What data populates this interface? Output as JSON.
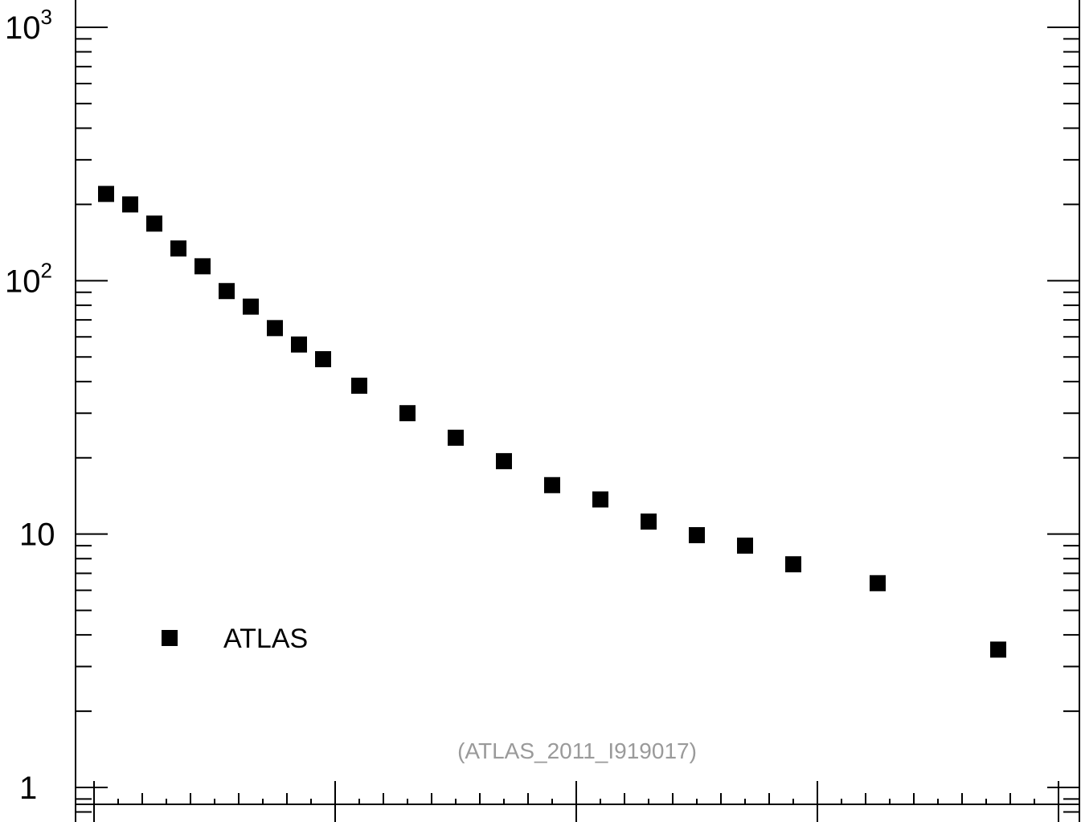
{
  "chart_data": {
    "type": "scatter",
    "yscale": "log",
    "ylim": [
      1,
      1000
    ],
    "xlim": [
      0,
      40.7
    ],
    "y_tick_labels": [
      {
        "value": 1,
        "base": "1",
        "sup": ""
      },
      {
        "value": 10,
        "base": "10",
        "sup": ""
      },
      {
        "value": 100,
        "base": "10",
        "sup": "2"
      },
      {
        "value": 1000,
        "base": "10",
        "sup": "3"
      }
    ],
    "x_major_ticks": [
      0.1,
      10,
      20,
      30,
      40
    ],
    "series": [
      {
        "name": "ATLAS",
        "color": "#000000",
        "marker": "square",
        "x": [
          0.5,
          1.5,
          2.5,
          3.5,
          4.5,
          5.5,
          6.5,
          7.5,
          8.5,
          9.5,
          11,
          13,
          15,
          17,
          19,
          21,
          23,
          25,
          27,
          29,
          32.5,
          37.5
        ],
        "y": [
          220,
          200,
          168,
          134,
          114,
          91,
          79,
          65,
          56,
          49,
          38.5,
          30,
          24,
          19.4,
          15.6,
          13.7,
          11.2,
          9.9,
          9.0,
          7.6,
          6.4,
          3.5
        ]
      }
    ],
    "legend": {
      "position": "bottom-left",
      "label": "ATLAS"
    },
    "annotation": "(ATLAS_2011_I919017)",
    "grid": false
  }
}
